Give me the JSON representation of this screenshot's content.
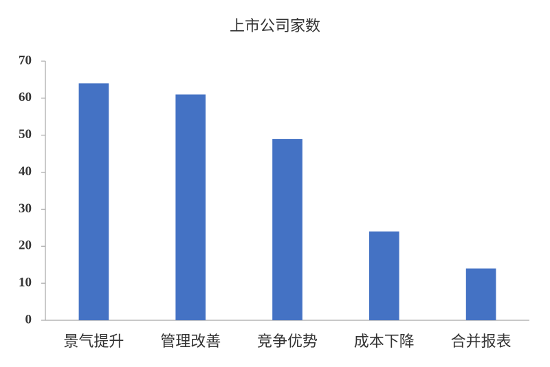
{
  "chart_data": {
    "type": "bar",
    "title": "上市公司家数",
    "categories": [
      "景气提升",
      "管理改善",
      "竞争优势",
      "成本下降",
      "合并报表"
    ],
    "values": [
      64,
      61,
      49,
      24,
      14
    ],
    "color": "#4472c4",
    "ylim": [
      0,
      70
    ],
    "yticks": [
      0,
      10,
      20,
      30,
      40,
      50,
      60,
      70
    ],
    "grid": false
  }
}
